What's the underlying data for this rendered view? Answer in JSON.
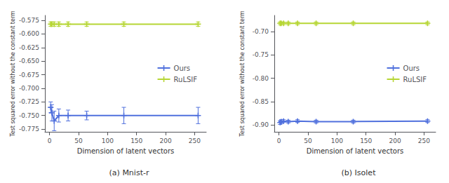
{
  "chart_data": [
    {
      "type": "line",
      "title": "(a) Mnist-r",
      "xlabel": "Dimension of latent vectors",
      "ylabel": "Test squared error without the constant term",
      "x": [
        2,
        4,
        8,
        16,
        32,
        64,
        128,
        256
      ],
      "series": [
        {
          "name": "Ours",
          "values": [
            -0.735,
            -0.745,
            -0.76,
            -0.75,
            -0.75,
            -0.75,
            -0.75,
            -0.75
          ],
          "errors": [
            0.01,
            0.015,
            0.018,
            0.012,
            0.01,
            0.008,
            0.015,
            0.015
          ]
        },
        {
          "name": "RuLSIF",
          "values": [
            -0.582,
            -0.582,
            -0.582,
            -0.582,
            -0.582,
            -0.582,
            -0.582,
            -0.582
          ],
          "errors": [
            0.004,
            0.004,
            0.004,
            0.004,
            0.004,
            0.004,
            0.004,
            0.004
          ]
        }
      ],
      "xlim": [
        -8,
        270
      ],
      "xticks": [
        0,
        50,
        100,
        150,
        200,
        250
      ],
      "ylim": [
        -0.78,
        -0.566
      ],
      "yticks": [
        -0.775,
        {
          "value": -0.75,
          "label": "-0.750"
        },
        -0.725,
        {
          "value": -0.7,
          "label": "-0.700"
        },
        -0.675,
        {
          "value": -0.65,
          "label": "-0.650"
        },
        -0.625,
        {
          "value": -0.6,
          "label": "-0.600"
        },
        -0.575
      ],
      "grid": false,
      "legend": "right",
      "marker": "plus"
    },
    {
      "type": "line",
      "title": "(b) Isolet",
      "xlabel": "Dimension of latent vectors",
      "ylabel": "Test squared error without the constant term",
      "x": [
        2,
        4,
        8,
        16,
        32,
        64,
        128,
        256
      ],
      "series": [
        {
          "name": "Ours",
          "values": [
            -0.895,
            -0.893,
            -0.892,
            -0.893,
            -0.892,
            -0.893,
            -0.893,
            -0.892
          ],
          "errors": [
            0.004,
            0.004,
            0.003,
            0.003,
            0.003,
            0.003,
            0.003,
            0.003
          ]
        },
        {
          "name": "RuLSIF",
          "values": [
            -0.682,
            -0.682,
            -0.682,
            -0.682,
            -0.682,
            -0.682,
            -0.682,
            -0.682
          ],
          "errors": [
            0.003,
            0.003,
            0.003,
            0.003,
            0.003,
            0.003,
            0.003,
            0.003
          ]
        }
      ],
      "xlim": [
        -8,
        270
      ],
      "xticks": [
        0,
        50,
        100,
        150,
        200,
        250
      ],
      "ylim": [
        -0.915,
        -0.665
      ],
      "yticks": [
        {
          "value": -0.9,
          "label": "-0.90"
        },
        -0.85,
        {
          "value": -0.8,
          "label": "-0.80"
        },
        -0.75,
        {
          "value": -0.7,
          "label": "-0.70"
        }
      ],
      "grid": false,
      "legend": "right",
      "marker": "plus"
    }
  ]
}
